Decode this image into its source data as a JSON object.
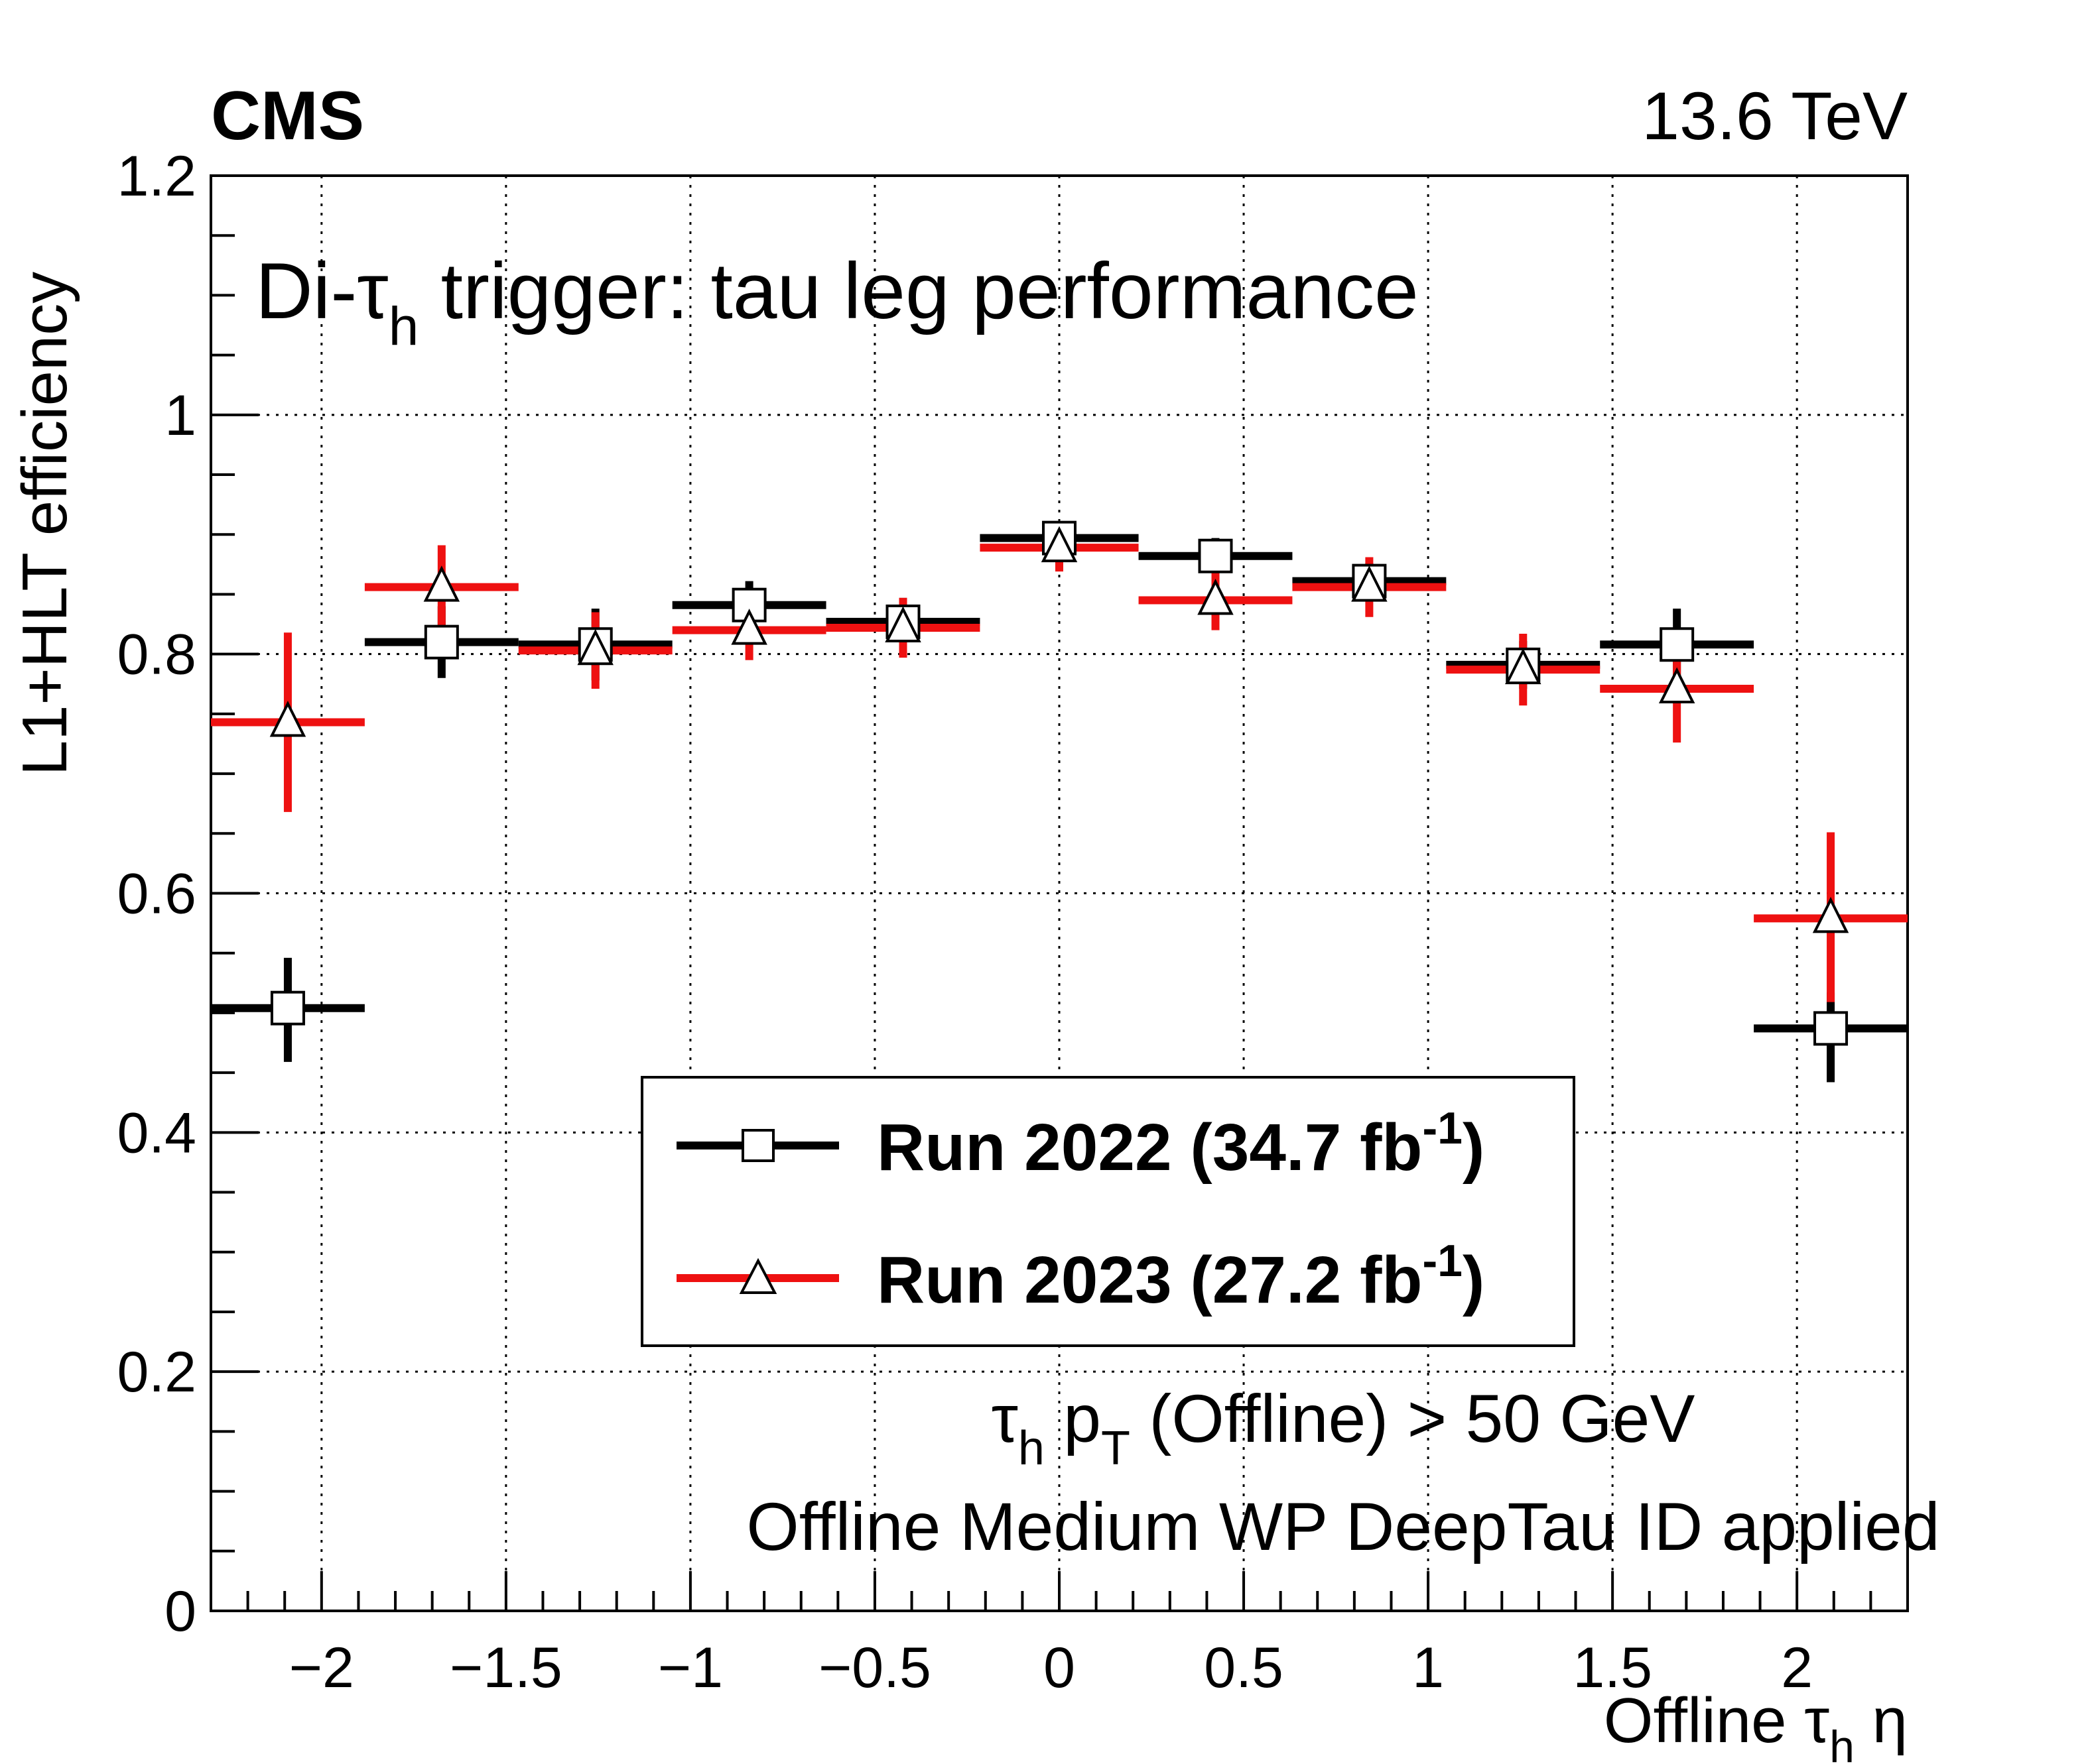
{
  "header": {
    "experiment": "CMS",
    "energy": "13.6 TeV"
  },
  "plot_title": {
    "prefix": "Di-",
    "tau": "τ",
    "sub": "h",
    "suffix": " trigger: tau leg performance"
  },
  "annotations": {
    "line1": {
      "tau": "τ",
      "tau_sub": "h",
      "p": " p",
      "p_sub": "T",
      "rest": " (Offline) > 50 GeV"
    },
    "line2": "Offline Medium WP DeepTau ID applied"
  },
  "axes": {
    "y_title": "L1+HLT efficiency",
    "x_title": {
      "prefix": "Offline ",
      "tau": "τ",
      "sub": "h",
      "eta": " η"
    }
  },
  "legend": [
    {
      "label": "Run 2022 (34.7 fb",
      "sup": "-1",
      "close": ")",
      "marker": "square-icon"
    },
    {
      "label": "Run 2023 (27.2 fb",
      "sup": "-1",
      "close": ")",
      "marker": "triangle-icon"
    }
  ],
  "colors": {
    "run2022": "#000000",
    "run2023": "#ee1111"
  },
  "chart_data": {
    "type": "scatter",
    "title": "Di-τh trigger: tau leg performance",
    "xlabel": "Offline τh η",
    "ylabel": "L1+HLT efficiency",
    "xlim": [
      -2.3,
      2.3
    ],
    "ylim": [
      0,
      1.2
    ],
    "grid": true,
    "legend_position": "bottom-center",
    "xticks": [
      -2,
      -1.5,
      -1,
      -0.5,
      0,
      0.5,
      1,
      1.5,
      2
    ],
    "xtick_labels": [
      "−2",
      "−1.5",
      "−1",
      "−0.5",
      "0",
      "0.5",
      "1",
      "1.5",
      "2"
    ],
    "yticks": [
      0,
      0.2,
      0.4,
      0.6,
      0.8,
      1,
      1.2
    ],
    "ytick_labels": [
      "0",
      "0.2",
      "0.4",
      "0.6",
      "0.8",
      "1",
      "1.2"
    ],
    "bin_edges": [
      -2.3,
      -1.883,
      -1.466,
      -1.049,
      -0.632,
      -0.215,
      0.215,
      0.632,
      1.049,
      1.466,
      1.883,
      2.3
    ],
    "series": [
      {
        "name": "Run 2022 (34.7 fb-1)",
        "marker": "open-square",
        "color": "#000000",
        "values": [
          0.504,
          0.81,
          0.808,
          0.841,
          0.827,
          0.897,
          0.882,
          0.861,
          0.791,
          0.808,
          0.487
        ],
        "err_low": [
          0.045,
          0.03,
          0.03,
          0.022,
          0.025,
          0.01,
          0.03,
          0.016,
          0.02,
          0.03,
          0.045
        ],
        "err_high": [
          0.042,
          0.03,
          0.03,
          0.02,
          0.02,
          0.01,
          0.015,
          0.015,
          0.02,
          0.03,
          0.03
        ]
      },
      {
        "name": "Run 2023 (27.2 fb-1)",
        "marker": "open-triangle",
        "color": "#ee1111",
        "values": [
          0.743,
          0.856,
          0.803,
          0.82,
          0.822,
          0.889,
          0.845,
          0.856,
          0.787,
          0.771,
          0.579
        ],
        "err_low": [
          0.075,
          0.035,
          0.032,
          0.025,
          0.025,
          0.02,
          0.025,
          0.025,
          0.03,
          0.045,
          0.07
        ],
        "err_high": [
          0.075,
          0.035,
          0.032,
          0.025,
          0.025,
          0.02,
          0.025,
          0.025,
          0.03,
          0.045,
          0.072
        ]
      }
    ]
  }
}
